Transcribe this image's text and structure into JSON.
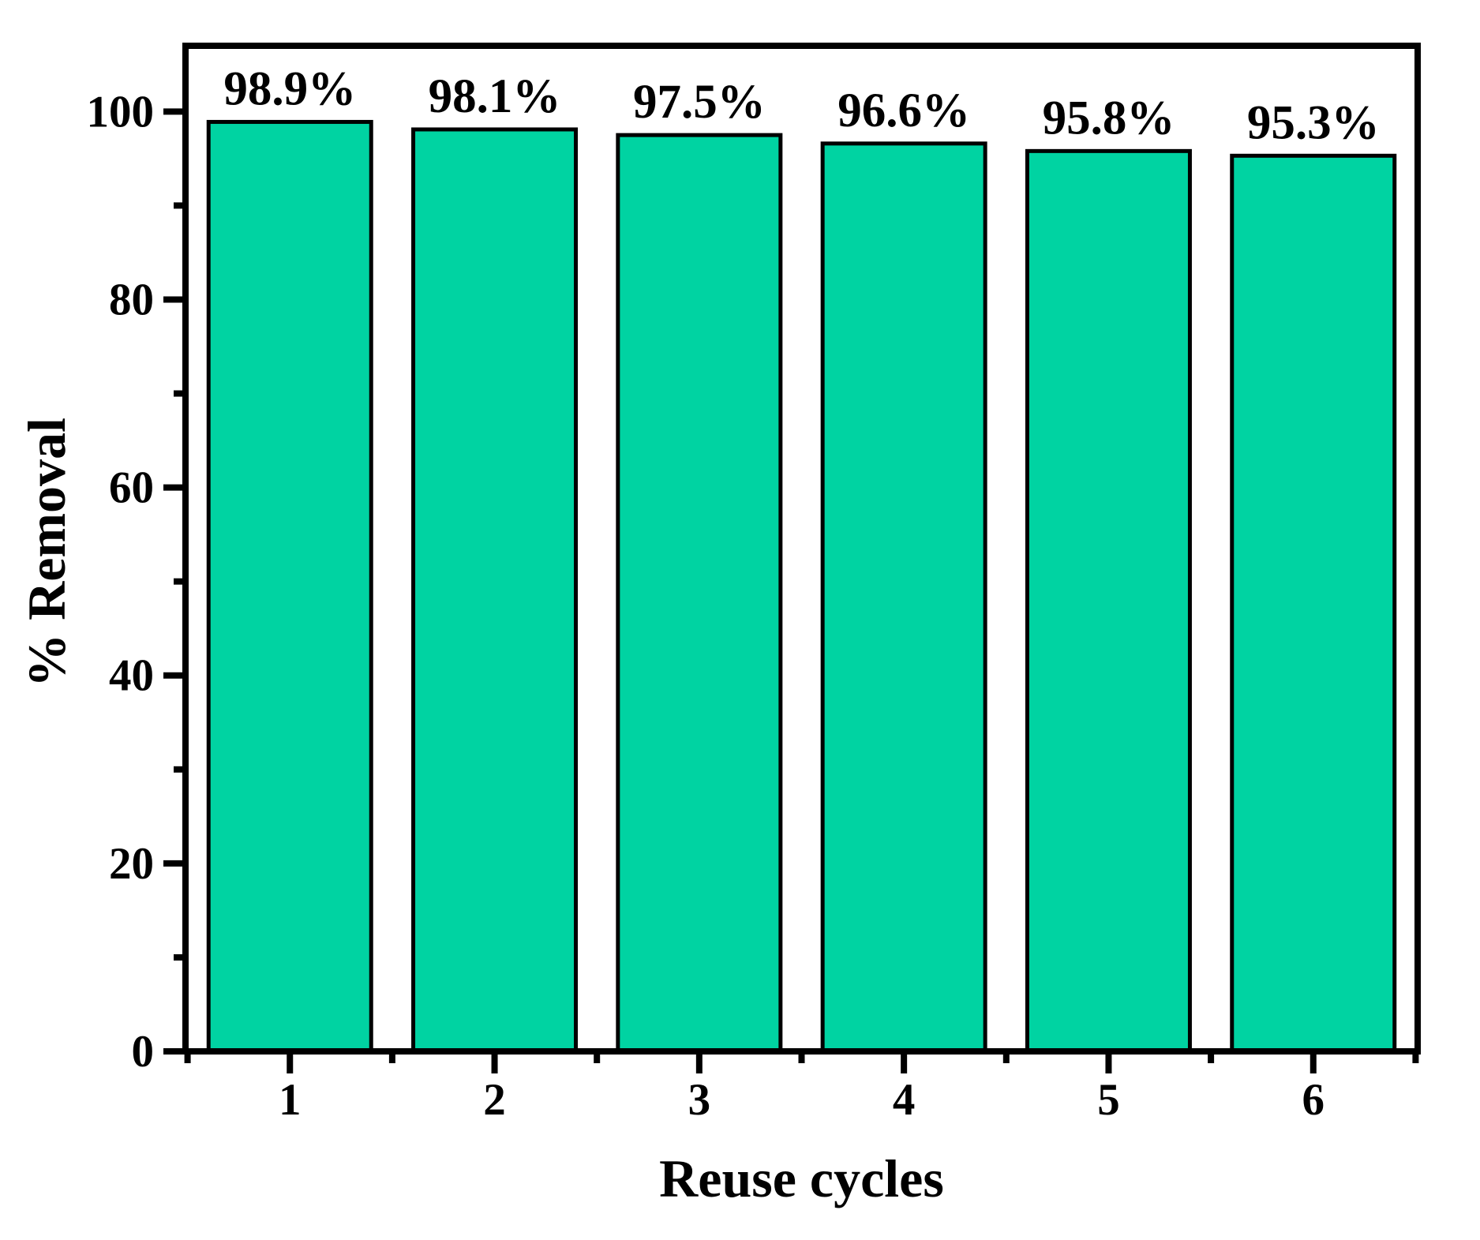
{
  "figure": {
    "background_color": "#ffffff"
  },
  "chart_data": {
    "type": "bar",
    "title": "",
    "xlabel": "Reuse cycles",
    "ylabel": "% Removal",
    "categories": [
      "1",
      "2",
      "3",
      "4",
      "5",
      "6"
    ],
    "values": [
      98.9,
      98.1,
      97.5,
      96.6,
      95.8,
      95.3
    ],
    "bar_labels": [
      "98.9%",
      "98.1%",
      "97.5%",
      "96.6%",
      "95.8%",
      "95.3%"
    ],
    "ylim": [
      0,
      107
    ],
    "y_major_ticks": [
      0,
      20,
      40,
      60,
      80,
      100
    ],
    "y_major_tick_labels": [
      "0",
      "20",
      "40",
      "60",
      "80",
      "100"
    ],
    "y_minor_ticks": [
      10,
      30,
      50,
      70,
      90
    ],
    "x_minor_ticks": [
      0.5,
      1.5,
      2.5,
      3.5,
      4.5,
      5.5,
      6.5
    ],
    "grid": false,
    "legend": "none",
    "bar_color": "#00D3A2",
    "bar_edge_color": "#000000",
    "axis_color": "#000000",
    "text_color": "#000000"
  }
}
